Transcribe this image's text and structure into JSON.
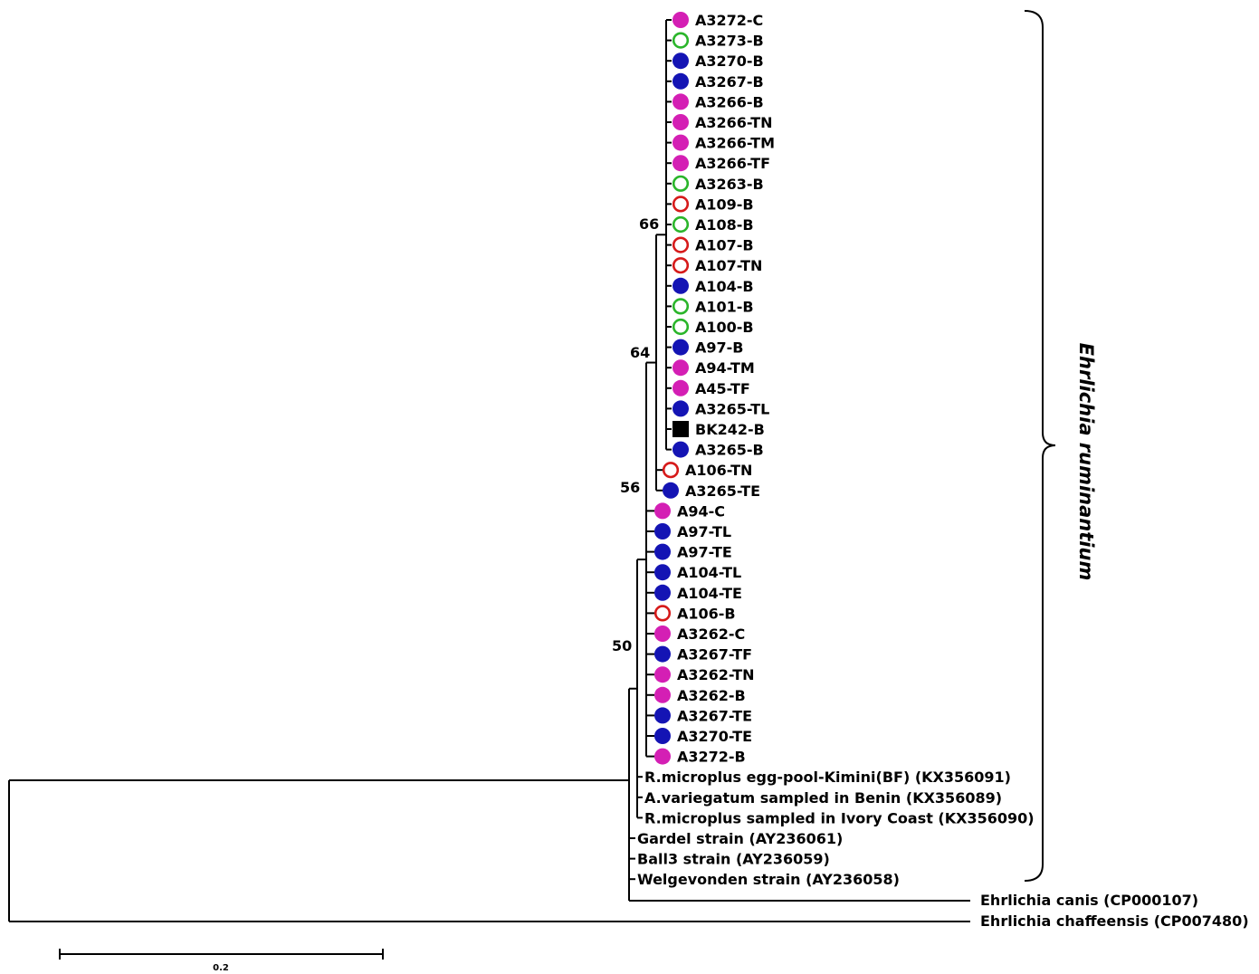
{
  "colors": {
    "magenta": "#d41fb4",
    "blue": "#1414b4",
    "green": "#2ab52a",
    "red": "#d61a1a",
    "black": "#000000",
    "line": "#000000"
  },
  "clade": {
    "name": "Ehrlichia ruminantium"
  },
  "bootstrap": [
    "66",
    "64",
    "56",
    "50"
  ],
  "leaves_upper": [
    {
      "label": "A3272-C",
      "marker": "magenta-filled-circle"
    },
    {
      "label": "A3273-B",
      "marker": "green-open-circle"
    },
    {
      "label": "A3270-B",
      "marker": "blue-filled-circle"
    },
    {
      "label": "A3267-B",
      "marker": "blue-filled-circle"
    },
    {
      "label": "A3266-B",
      "marker": "magenta-filled-circle"
    },
    {
      "label": "A3266-TN",
      "marker": "magenta-filled-circle"
    },
    {
      "label": "A3266-TM",
      "marker": "magenta-filled-circle"
    },
    {
      "label": "A3266-TF",
      "marker": "magenta-filled-circle"
    },
    {
      "label": "A3263-B",
      "marker": "green-open-circle"
    },
    {
      "label": "A109-B",
      "marker": "red-open-circle"
    },
    {
      "label": "A108-B",
      "marker": "green-open-circle"
    },
    {
      "label": "A107-B",
      "marker": "red-open-circle"
    },
    {
      "label": "A107-TN",
      "marker": "red-open-circle"
    },
    {
      "label": "A104-B",
      "marker": "blue-filled-circle"
    },
    {
      "label": "A101-B",
      "marker": "green-open-circle"
    },
    {
      "label": "A100-B",
      "marker": "green-open-circle"
    },
    {
      "label": "A97-B",
      "marker": "blue-filled-circle"
    },
    {
      "label": "A94-TM",
      "marker": "magenta-filled-circle"
    },
    {
      "label": "A45-TF",
      "marker": "magenta-filled-circle"
    },
    {
      "label": "A3265-TL",
      "marker": "blue-filled-circle"
    },
    {
      "label": "BK242-B",
      "marker": "black-square"
    },
    {
      "label": "A3265-B",
      "marker": "blue-filled-circle"
    }
  ],
  "leaves_middle": [
    {
      "label": "A106-TN",
      "marker": "red-open-circle"
    },
    {
      "label": "A3265-TE",
      "marker": "blue-filled-circle"
    }
  ],
  "leaves_lower": [
    {
      "label": "A94-C",
      "marker": "magenta-filled-circle"
    },
    {
      "label": "A97-TL",
      "marker": "blue-filled-circle"
    },
    {
      "label": "A97-TE",
      "marker": "blue-filled-circle"
    },
    {
      "label": "A104-TL",
      "marker": "blue-filled-circle"
    },
    {
      "label": "A104-TE",
      "marker": "blue-filled-circle"
    },
    {
      "label": "A106-B",
      "marker": "red-open-circle"
    },
    {
      "label": "A3262-C",
      "marker": "magenta-filled-circle"
    },
    {
      "label": "A3267-TF",
      "marker": "blue-filled-circle"
    },
    {
      "label": "A3262-TN",
      "marker": "magenta-filled-circle"
    },
    {
      "label": "A3262-B",
      "marker": "magenta-filled-circle"
    },
    {
      "label": "A3267-TE",
      "marker": "blue-filled-circle"
    },
    {
      "label": "A3270-TE",
      "marker": "blue-filled-circle"
    },
    {
      "label": "A3272-B",
      "marker": "magenta-filled-circle"
    }
  ],
  "references_a": [
    "R.microplus egg-pool-Kimini(BF) (KX356091)",
    "A.variegatum sampled in Benin (KX356089)",
    "R.microplus sampled in Ivory Coast (KX356090)"
  ],
  "references_b": [
    "Gardel strain (AY236061)",
    "Ball3 strain (AY236059)",
    "Welgevonden strain (AY236058)"
  ],
  "outgroups": [
    "Ehrlichia canis (CP000107)",
    "Ehrlichia chaffeensis (CP007480)"
  ],
  "scale_bar": {
    "label": "0.2",
    "value": 0.2
  }
}
